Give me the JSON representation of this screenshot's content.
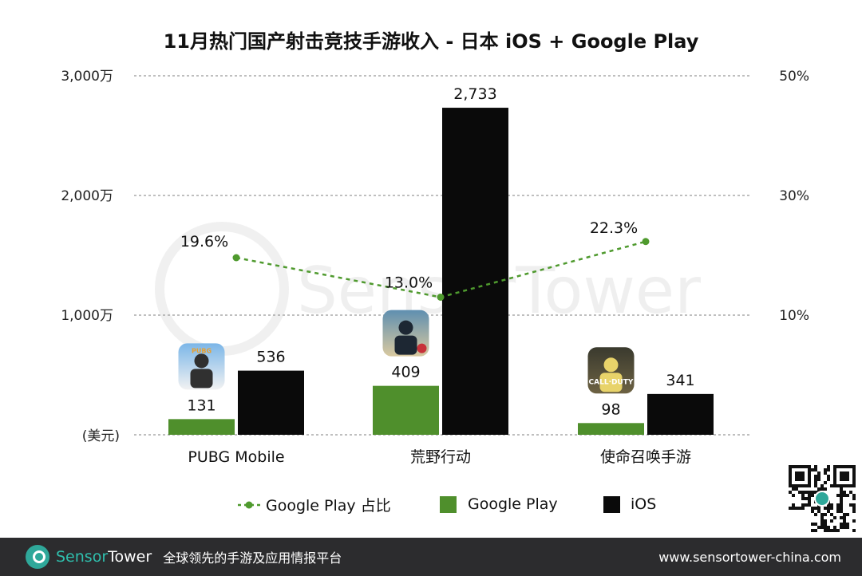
{
  "chart_data": {
    "type": "bar",
    "title": "11月热门国产射击竞技手游收入 - 日本 iOS + Google Play",
    "categories": [
      "PUBG Mobile",
      "荒野行动",
      "使命召唤手游"
    ],
    "series": [
      {
        "name": "Google Play",
        "values": [
          131,
          409,
          98
        ],
        "color": "#4f8f2c",
        "labels": [
          "131",
          "409",
          "98"
        ]
      },
      {
        "name": "iOS",
        "values": [
          536,
          2733,
          341
        ],
        "color": "#0a0a0a",
        "labels": [
          "536",
          "2,733",
          "341"
        ]
      }
    ],
    "line_series": {
      "name": "Google Play 占比",
      "values": [
        19.6,
        13.0,
        22.3
      ],
      "labels": [
        "19.6%",
        "13.0%",
        "22.3%"
      ],
      "color": "#4f9a2e",
      "style": "dashed"
    },
    "y_left": {
      "ylim": [
        0,
        3000
      ],
      "ticks": [
        3000,
        2000,
        1000
      ],
      "tick_labels": [
        "3,000万",
        "2,000万",
        "1,000万"
      ],
      "unit_label": "(美元)"
    },
    "y_right": {
      "ylim": [
        -10,
        50
      ],
      "ticks": [
        50,
        30,
        10
      ],
      "tick_labels": [
        "50%",
        "30%",
        "10%"
      ]
    },
    "grid": true,
    "legend_position": "bottom",
    "legend": [
      "Google Play 占比",
      "Google Play",
      "iOS"
    ],
    "icons": [
      {
        "category": "PUBG Mobile",
        "icon": "pubg-mobile-app-icon",
        "text": "PUBG"
      },
      {
        "category": "荒野行动",
        "icon": "knives-out-app-icon"
      },
      {
        "category": "使命召唤手游",
        "icon": "call-of-duty-app-icon",
        "text": "CALL·DUTY"
      }
    ]
  },
  "watermark": "SensorTower",
  "footer": {
    "brand_part1": "Sensor",
    "brand_part2": "Tower",
    "slogan": "全球领先的手游及应用情报平台",
    "url": "www.sensortower-china.com"
  }
}
